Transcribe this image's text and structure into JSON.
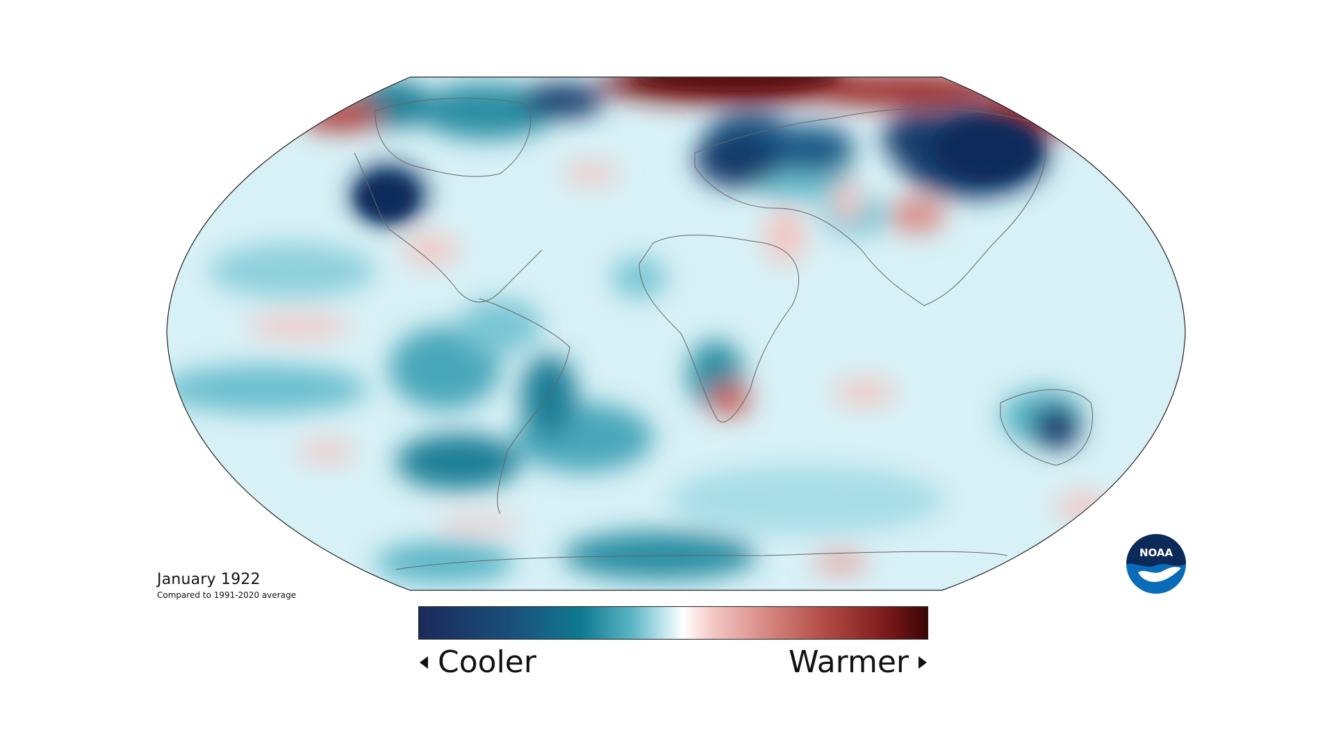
{
  "map": {
    "title": "January 1922",
    "subtitle": "Compared to 1991-2020 average",
    "projection": "Robinson",
    "variable": "temperature anomaly"
  },
  "legend": {
    "cool_label": "Cooler",
    "warm_label": "Warmer",
    "colors": [
      "#1b2a5a",
      "#1a4f7a",
      "#0f7a90",
      "#5cb6c6",
      "#bfe6ee",
      "#ffffff",
      "#f3c6c2",
      "#d98a84",
      "#b14a45",
      "#7a1a1a",
      "#3c0505"
    ]
  },
  "logo": {
    "text": "NOAA",
    "color": "#0a6bb8",
    "dark_color": "#0b2a5a"
  },
  "colors": {
    "ocean_base": "#d6f0f5",
    "strong_cool": "#123a6b",
    "cool": "#1d7e95",
    "light_cool": "#8fd0dc",
    "warm": "#e5a5a2",
    "strong_warm": "#7a1616",
    "coastline": "#666666"
  }
}
